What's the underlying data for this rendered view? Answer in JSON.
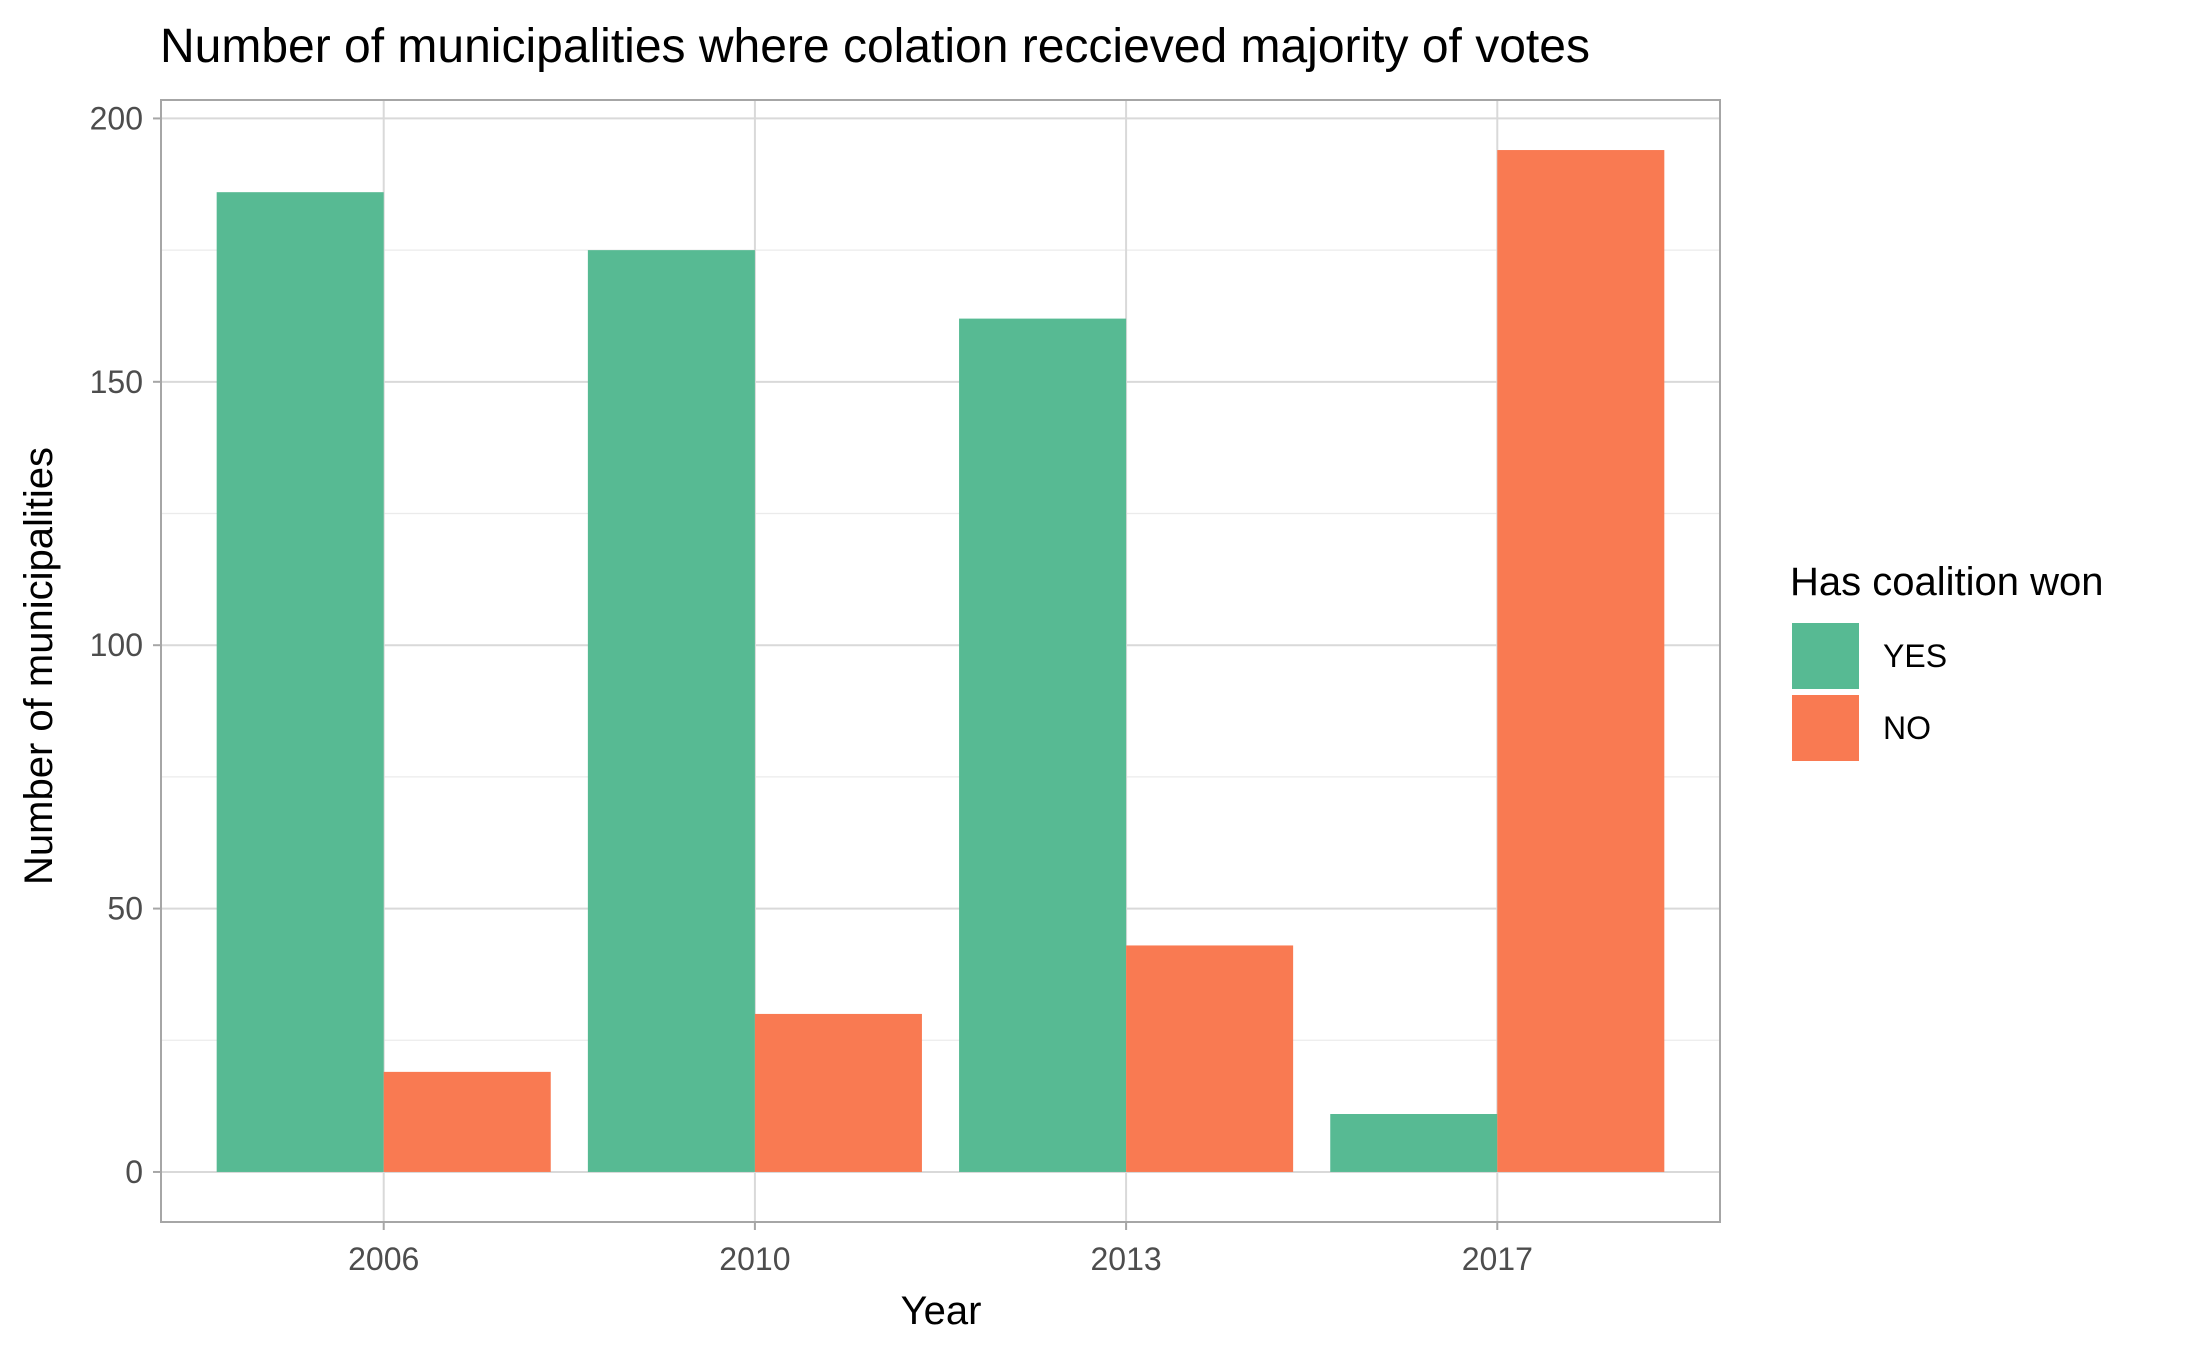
{
  "chart_data": {
    "type": "bar",
    "title": "Number of municipalities where colation reccieved majority of votes",
    "xlabel": "Year",
    "ylabel": "Number of municipalities",
    "categories": [
      "2006",
      "2010",
      "2013",
      "2017"
    ],
    "series": [
      {
        "name": "YES",
        "values": [
          186,
          175,
          162,
          11
        ],
        "color": "#57BA93"
      },
      {
        "name": "NO",
        "values": [
          19,
          30,
          43,
          194
        ],
        "color": "#F97A52"
      }
    ],
    "ylim": [
      -9.5,
      203.5
    ],
    "yticks": [
      0,
      50,
      100,
      150,
      200
    ],
    "y_minor_ticks": [
      25,
      75,
      125,
      175
    ],
    "grid": true,
    "legend": {
      "title": "Has coalition won",
      "position": "right",
      "items": [
        "YES",
        "NO"
      ]
    },
    "colors": {
      "panel_border": "#a6a6a6",
      "grid_major": "#d9d9d9",
      "grid_minor": "#ebebeb",
      "tick_label": "#4d4d4d"
    }
  }
}
